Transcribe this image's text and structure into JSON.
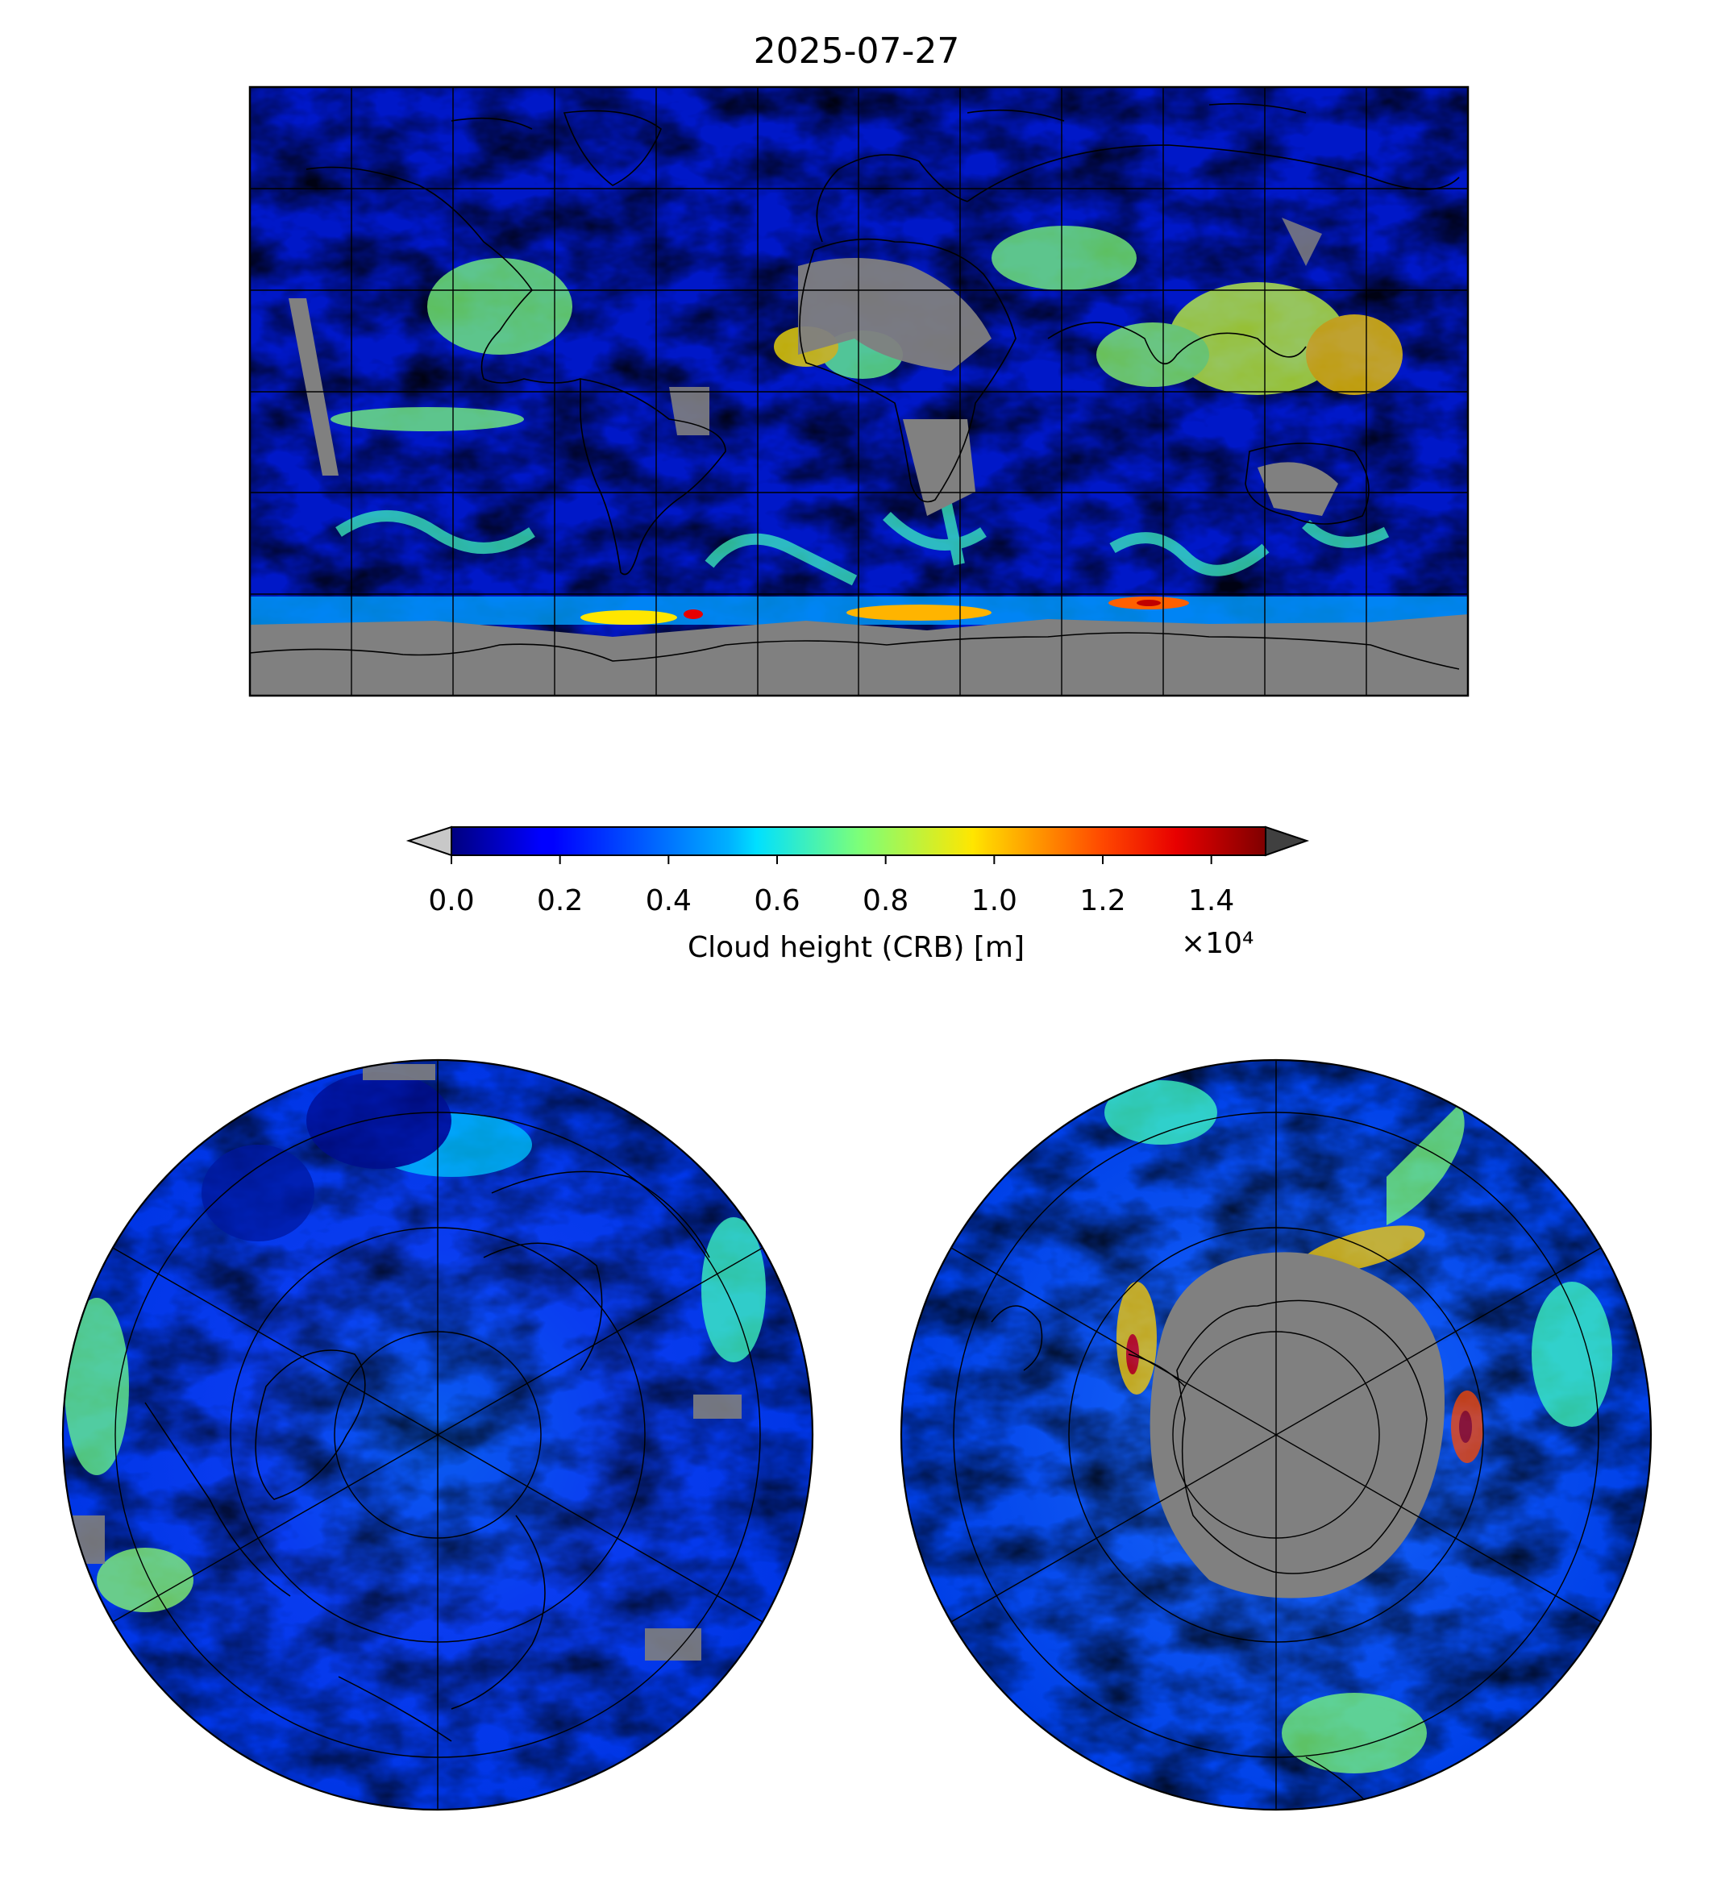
{
  "title": "2025-07-27",
  "colorbar": {
    "label": "Cloud height (CRB) [m]",
    "multiplier": "×10⁴",
    "vmin": 0.0,
    "vmax": 1.5,
    "ticks": [
      "0.0",
      "0.2",
      "0.4",
      "0.6",
      "0.8",
      "1.0",
      "1.2",
      "1.4"
    ],
    "colormap": "jet",
    "under_color": "#c8c8c8",
    "over_color": "#404040"
  },
  "colors": {
    "no_data": "#808080",
    "coastline": "#000000",
    "grid": "#000000"
  },
  "maps": {
    "global": {
      "projection": "plate-carree",
      "meridian_step_deg": 30,
      "parallel_step_deg": 30
    },
    "north_polar": {
      "projection": "north-polar-stereographic"
    },
    "south_polar": {
      "projection": "south-polar-stereographic"
    }
  }
}
